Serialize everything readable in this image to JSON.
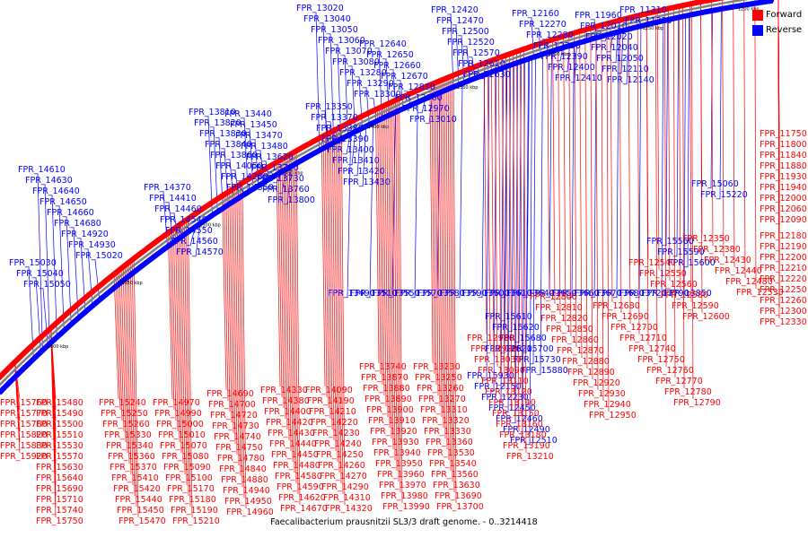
{
  "caption": "Faecalibacterium prausnitzii SL3/3 draft genome. - 0..3214418",
  "legend": [
    {
      "label": "Forward",
      "color": "#ff0000"
    },
    {
      "label": "Reverse",
      "color": "#0000ff"
    }
  ],
  "colors": {
    "forward": "#ff0000",
    "reverse": "#0000ff",
    "backbone": "#808080"
  },
  "ticks": [
    "1200 kbp",
    "1250 kbp",
    "1300 kbp",
    "1350 kbp",
    "1400 kbp",
    "1450 kbp",
    "1500 kbp",
    "1550 kbp",
    "1600 kbp"
  ],
  "reverse_genes": [
    "FPR_11310",
    "FPR_11320",
    "FPR_11960",
    "FPR_12010",
    "FPR_12020",
    "FPR_12040",
    "FPR_12050",
    "FPR_12110",
    "FPR_12140",
    "FPR_12160",
    "FPR_12270",
    "FPR_12280",
    "FPR_12290",
    "FPR_12390",
    "FPR_12400",
    "FPR_12410",
    "FPR_12420",
    "FPR_12470",
    "FPR_12500",
    "FPR_12520",
    "FPR_12570",
    "FPR_12610",
    "FPR_12630",
    "FPR_12640",
    "FPR_12650",
    "FPR_12660",
    "FPR_12670",
    "FPR_12830",
    "FPR_12960",
    "FPR_12970",
    "FPR_13010",
    "FPR_13020",
    "FPR_13040",
    "FPR_13050",
    "FPR_13060",
    "FPR_13070",
    "FPR_13080",
    "FPR_13280",
    "FPR_13290",
    "FPR_13300",
    "FPR_13350",
    "FPR_13370",
    "FPR_13380",
    "FPR_13390",
    "FPR_13400",
    "FPR_13410",
    "FPR_13420",
    "FPR_13430",
    "FPR_13440",
    "FPR_13450",
    "FPR_13470",
    "FPR_13480",
    "FPR_13620",
    "FPR_13710",
    "FPR_13730",
    "FPR_13760",
    "FPR_13800",
    "FPR_13810",
    "FPR_13820",
    "FPR_13830",
    "FPR_13840",
    "FPR_13860",
    "FPR_14050",
    "FPR_14280",
    "FPR_14350",
    "FPR_14370",
    "FPR_14410",
    "FPR_14460",
    "FPR_14540",
    "FPR_14550",
    "FPR_14560",
    "FPR_14570",
    "FPR_14610",
    "FPR_14630",
    "FPR_14640",
    "FPR_14650",
    "FPR_14660",
    "FPR_14680",
    "FPR_14920",
    "FPR_14930",
    "FPR_15020",
    "FPR_15030",
    "FPR_15040",
    "FPR_15050",
    "FPR_15060",
    "FPR_15220",
    "FPR_15560",
    "FPR_15590",
    "FPR_15600",
    "FPR_15610",
    "FPR_15620",
    "FPR_15680",
    "FPR_15700",
    "FPR_15730",
    "FPR_15880",
    "FPR_15930",
    "FPR_12150",
    "FPR_12230",
    "FPR_12450",
    "FPR_12460",
    "FPR_12490",
    "FPR_12510",
    "FPR_12620",
    "FPR_13490",
    "FPR_13510",
    "FPR_13550",
    "FPR_13570",
    "FPR_13580",
    "FPR_13590",
    "FPR_13600",
    "FPR_13610",
    "FPR_13640",
    "FPR_13650",
    "FPR_13660",
    "FPR_13670",
    "FPR_13680",
    "FPR_13720",
    "FPR_13790",
    "FPR_13850"
  ],
  "forward_genes": [
    "FPR_11750",
    "FPR_11800",
    "FPR_11840",
    "FPR_11880",
    "FPR_11930",
    "FPR_11940",
    "FPR_12000",
    "FPR_12060",
    "FPR_12090",
    "FPR_12180",
    "FPR_12190",
    "FPR_12200",
    "FPR_12210",
    "FPR_12220",
    "FPR_12250",
    "FPR_12260",
    "FPR_12300",
    "FPR_12330",
    "FPR_12350",
    "FPR_12380",
    "FPR_12430",
    "FPR_12440",
    "FPR_12480",
    "FPR_12530",
    "FPR_12540",
    "FPR_12550",
    "FPR_12560",
    "FPR_12580",
    "FPR_12590",
    "FPR_12600",
    "FPR_12680",
    "FPR_12690",
    "FPR_12700",
    "FPR_12710",
    "FPR_12740",
    "FPR_12750",
    "FPR_12760",
    "FPR_12770",
    "FPR_12780",
    "FPR_12790",
    "FPR_12800",
    "FPR_12810",
    "FPR_12820",
    "FPR_12850",
    "FPR_12860",
    "FPR_12870",
    "FPR_12880",
    "FPR_12890",
    "FPR_12920",
    "FPR_12930",
    "FPR_12940",
    "FPR_12950",
    "FPR_12980",
    "FPR_12990",
    "FPR_13030",
    "FPR_13090",
    "FPR_13110",
    "FPR_13120",
    "FPR_13140",
    "FPR_13150",
    "FPR_13160",
    "FPR_13180",
    "FPR_13190",
    "FPR_13210",
    "FPR_13230",
    "FPR_13250",
    "FPR_13260",
    "FPR_13270",
    "FPR_13310",
    "FPR_13320",
    "FPR_13330",
    "FPR_13360",
    "FPR_13530",
    "FPR_13540",
    "FPR_13560",
    "FPR_13630",
    "FPR_13690",
    "FPR_13700",
    "FPR_13740",
    "FPR_13870",
    "FPR_13880",
    "FPR_13890",
    "FPR_13900",
    "FPR_13910",
    "FPR_13920",
    "FPR_13930",
    "FPR_13940",
    "FPR_13950",
    "FPR_13960",
    "FPR_13970",
    "FPR_13980",
    "FPR_13990",
    "FPR_14090",
    "FPR_14190",
    "FPR_14210",
    "FPR_14220",
    "FPR_14230",
    "FPR_14240",
    "FPR_14250",
    "FPR_14260",
    "FPR_14270",
    "FPR_14290",
    "FPR_14310",
    "FPR_14320",
    "FPR_14330",
    "FPR_14380",
    "FPR_14400",
    "FPR_14420",
    "FPR_14430",
    "FPR_14440",
    "FPR_14450",
    "FPR_14480",
    "FPR_14580",
    "FPR_14590",
    "FPR_14620",
    "FPR_14670",
    "FPR_14690",
    "FPR_14700",
    "FPR_14720",
    "FPR_14730",
    "FPR_14740",
    "FPR_14750",
    "FPR_14780",
    "FPR_14840",
    "FPR_14880",
    "FPR_14940",
    "FPR_14950",
    "FPR_14960",
    "FPR_14970",
    "FPR_14990",
    "FPR_15000",
    "FPR_15010",
    "FPR_15070",
    "FPR_15080",
    "FPR_15090",
    "FPR_15100",
    "FPR_15170",
    "FPR_15180",
    "FPR_15190",
    "FPR_15210",
    "FPR_15240",
    "FPR_15250",
    "FPR_15260",
    "FPR_15330",
    "FPR_15340",
    "FPR_15360",
    "FPR_15370",
    "FPR_15410",
    "FPR_15420",
    "FPR_15440",
    "FPR_15450",
    "FPR_15470",
    "FPR_15480",
    "FPR_15490",
    "FPR_15500",
    "FPR_15510",
    "FPR_15530",
    "FPR_15570",
    "FPR_15630",
    "FPR_15640",
    "FPR_15690",
    "FPR_15710",
    "FPR_15740",
    "FPR_15750",
    "FPR_15760",
    "FPR_15770",
    "FPR_15780",
    "FPR_15820",
    "FPR_15830",
    "FPR_15920"
  ]
}
